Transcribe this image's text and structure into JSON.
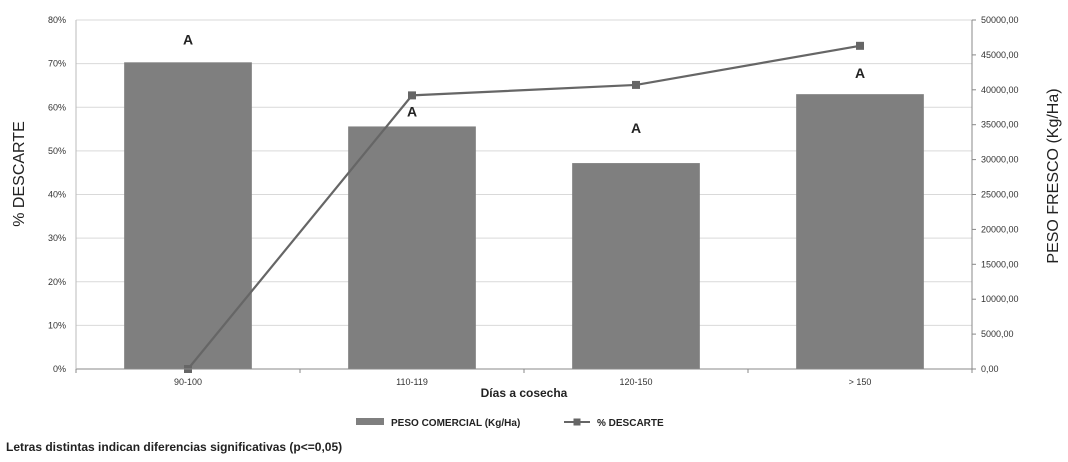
{
  "chart_data": {
    "type": "bar",
    "categories": [
      "90-100",
      "110-119",
      "120-150",
      "> 150"
    ],
    "xlabel": "Días a cosecha",
    "ylabel_left": "% DESCARTE",
    "ylabel_right": "PESO FRESCO (Kg/Ha)",
    "y_left_ticks": [
      "0%",
      "10%",
      "20%",
      "30%",
      "40%",
      "50%",
      "60%",
      "70%",
      "80%"
    ],
    "y_left_range": [
      0,
      80
    ],
    "y_right_ticks": [
      "0,00",
      "5000,00",
      "10000,00",
      "15000,00",
      "20000,00",
      "25000,00",
      "30000,00",
      "35000,00",
      "40000,00",
      "45000,00",
      "50000,00"
    ],
    "y_right_range": [
      0,
      50000
    ],
    "grid": true,
    "series": [
      {
        "name": "PESO COMERCIAL (Kg/Ha)",
        "kind": "bar",
        "axis": "left",
        "values": [
          70.3,
          55.6,
          47.2,
          63.0
        ],
        "color": "#7f7f7f"
      },
      {
        "name": "% DESCARTE",
        "kind": "line",
        "axis": "right",
        "values": [
          0,
          39200,
          40700,
          46300
        ],
        "color": "#666666"
      }
    ],
    "annotations": [
      "A",
      "A",
      "A",
      "A"
    ],
    "legend_position": "bottom-center",
    "footnote": "Letras distintas indican diferencias significativas (p<=0,05)"
  }
}
